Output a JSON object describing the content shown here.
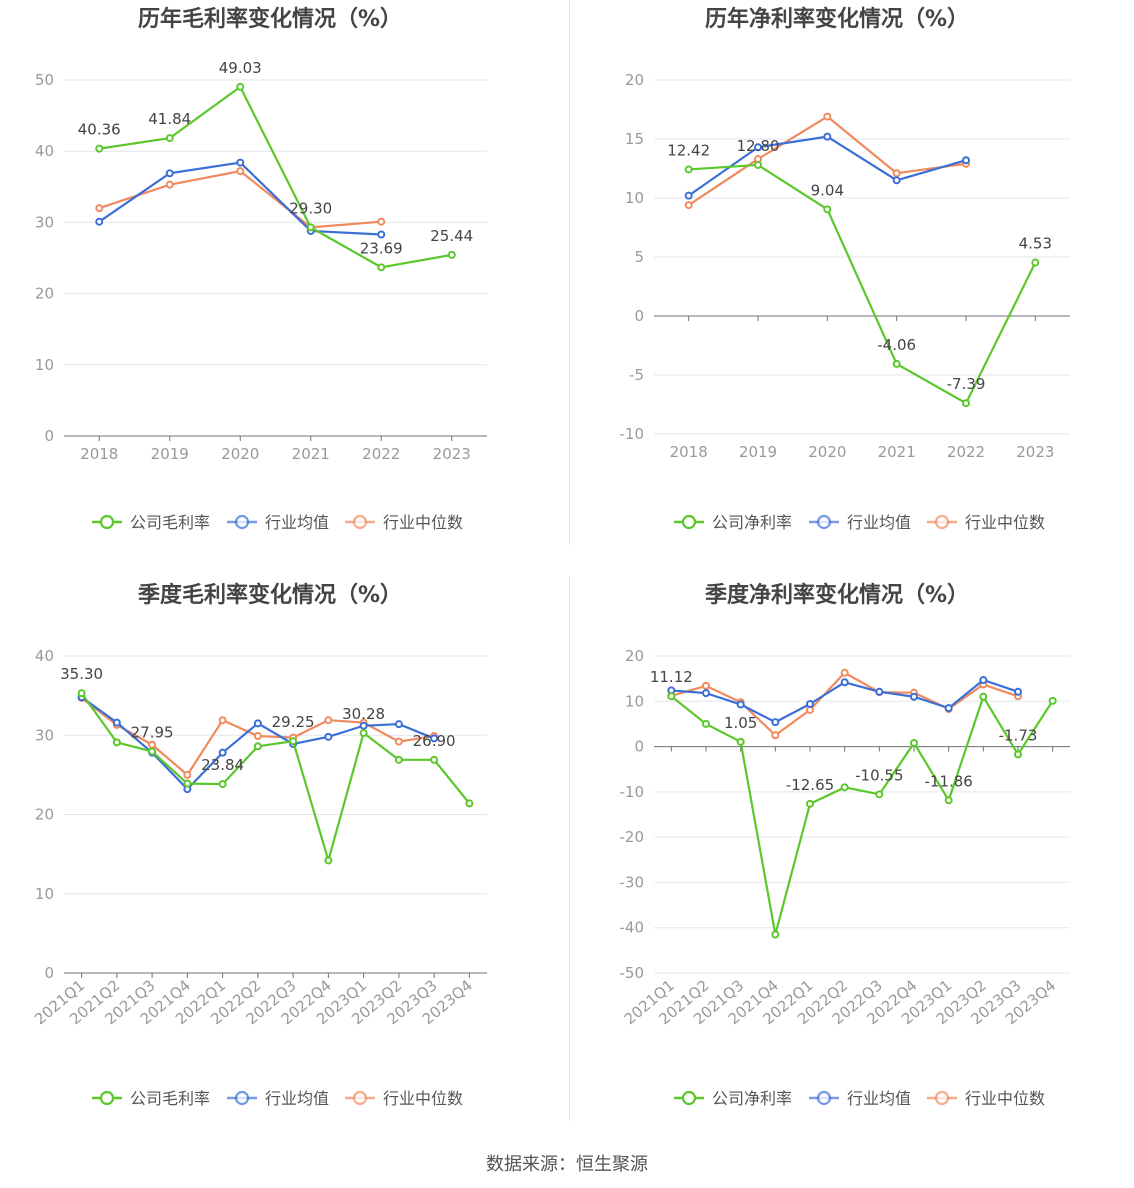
{
  "footer": "数据来源：恒生聚源",
  "colors": {
    "company": "#5bc72a",
    "avg": "#3b6fd8",
    "median": "#f08a5d"
  },
  "chart_data": [
    {
      "type": "line",
      "title": "历年毛利率变化情况（%）",
      "x": [
        "2018",
        "2019",
        "2020",
        "2021",
        "2022",
        "2023"
      ],
      "ylim": [
        0,
        50
      ],
      "yticks": [
        0,
        10,
        20,
        30,
        40,
        50
      ],
      "legend_position": "bottom",
      "series": [
        {
          "name": "公司毛利率",
          "role": "company",
          "values": [
            40.36,
            41.84,
            49.03,
            29.3,
            23.69,
            25.44
          ],
          "labels": [
            "40.36",
            "41.84",
            "49.03",
            "29.30",
            "23.69",
            "25.44"
          ]
        },
        {
          "name": "行业均值",
          "role": "avg",
          "values": [
            30.1,
            36.9,
            38.4,
            28.8,
            28.3,
            null
          ]
        },
        {
          "name": "行业中位数",
          "role": "median",
          "values": [
            32.0,
            35.3,
            37.2,
            29.3,
            30.1,
            null
          ]
        }
      ]
    },
    {
      "type": "line",
      "title": "历年净利率变化情况（%）",
      "x": [
        "2018",
        "2019",
        "2020",
        "2021",
        "2022",
        "2023"
      ],
      "ylim": [
        -10,
        20
      ],
      "yticks": [
        -10,
        -5,
        0,
        5,
        10,
        15,
        20
      ],
      "legend_position": "bottom",
      "series": [
        {
          "name": "公司净利率",
          "role": "company",
          "values": [
            12.42,
            12.8,
            9.04,
            -4.06,
            -7.39,
            4.53
          ],
          "labels": [
            "12.42",
            "12.80",
            "9.04",
            "-4.06",
            "-7.39",
            "4.53"
          ]
        },
        {
          "name": "行业均值",
          "role": "avg",
          "values": [
            10.2,
            14.3,
            15.2,
            11.5,
            13.2,
            null
          ]
        },
        {
          "name": "行业中位数",
          "role": "median",
          "values": [
            9.4,
            13.3,
            16.9,
            12.1,
            12.9,
            null
          ]
        }
      ]
    },
    {
      "type": "line",
      "title": "季度毛利率变化情况（%）",
      "x": [
        "2021Q1",
        "2021Q2",
        "2021Q3",
        "2021Q4",
        "2022Q1",
        "2022Q2",
        "2022Q3",
        "2022Q4",
        "2023Q1",
        "2023Q2",
        "2023Q3",
        "2023Q4"
      ],
      "ylim": [
        0,
        40
      ],
      "yticks": [
        0,
        10,
        20,
        30,
        40
      ],
      "legend_position": "bottom",
      "series": [
        {
          "name": "公司毛利率",
          "role": "company",
          "values": [
            35.3,
            29.1,
            27.95,
            23.9,
            23.84,
            28.6,
            29.25,
            14.2,
            30.28,
            26.9,
            26.9,
            21.4
          ],
          "labels": [
            "35.30",
            "",
            "27.95",
            "",
            "23.84",
            "",
            "29.25",
            "",
            "30.28",
            "",
            "26.90",
            ""
          ]
        },
        {
          "name": "行业均值",
          "role": "avg",
          "values": [
            34.8,
            31.6,
            27.8,
            23.2,
            27.8,
            31.5,
            28.9,
            29.8,
            31.2,
            31.4,
            29.6,
            null
          ]
        },
        {
          "name": "行业中位数",
          "role": "median",
          "values": [
            34.7,
            31.3,
            28.8,
            25.0,
            31.9,
            29.9,
            29.7,
            31.9,
            31.6,
            29.2,
            29.9,
            null
          ]
        }
      ]
    },
    {
      "type": "line",
      "title": "季度净利率变化情况（%）",
      "x": [
        "2021Q1",
        "2021Q2",
        "2021Q3",
        "2021Q4",
        "2022Q1",
        "2022Q2",
        "2022Q3",
        "2022Q4",
        "2023Q1",
        "2023Q2",
        "2023Q3",
        "2023Q4"
      ],
      "ylim": [
        -50,
        20
      ],
      "yticks": [
        -50,
        -40,
        -30,
        -20,
        -10,
        0,
        10,
        20
      ],
      "legend_position": "bottom",
      "series": [
        {
          "name": "公司净利率",
          "role": "company",
          "values": [
            11.12,
            5.0,
            1.05,
            -41.5,
            -12.65,
            -9.0,
            -10.55,
            0.8,
            -11.86,
            11.0,
            -1.73,
            10.1
          ],
          "labels": [
            "11.12",
            "",
            "1.05",
            "",
            "-12.65",
            "",
            "-10.55",
            "",
            "-11.86",
            "",
            "-1.73",
            ""
          ]
        },
        {
          "name": "行业均值",
          "role": "avg",
          "values": [
            12.4,
            11.8,
            9.3,
            5.4,
            9.4,
            14.2,
            12.1,
            11.0,
            8.5,
            14.7,
            12.1,
            null
          ]
        },
        {
          "name": "行业中位数",
          "role": "median",
          "values": [
            11.2,
            13.4,
            9.8,
            2.5,
            8.1,
            16.3,
            12.0,
            11.9,
            8.3,
            13.7,
            11.1,
            null
          ]
        }
      ]
    }
  ]
}
